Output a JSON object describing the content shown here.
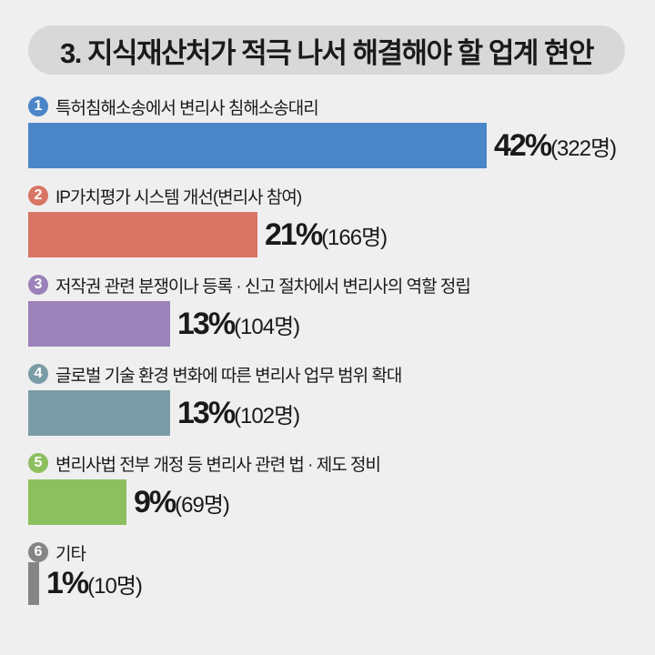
{
  "chart_data": {
    "type": "bar",
    "orientation": "horizontal",
    "title": "3. 지식재산처가 적극 나서 해결해야 할 업계 현안",
    "categories": [
      "특허침해소송에서 변리사 침해소송대리",
      "IP가치평가 시스템 개선(변리사 참여)",
      "저작권 관련 분쟁이나 등록 · 신고 절차에서 변리사의 역할 정립",
      "글로벌 기술 환경 변화에 따른 변리사 업무 범위 확대",
      "변리사법 전부 개정 등 변리사 관련 법 · 제도 정비",
      "기타"
    ],
    "numbers": [
      "1",
      "2",
      "3",
      "4",
      "5",
      "6"
    ],
    "values": [
      42,
      21,
      13,
      13,
      9,
      1
    ],
    "value_labels": [
      "42%",
      "21%",
      "13%",
      "13%",
      "9%",
      "1%"
    ],
    "counts": [
      322,
      166,
      104,
      102,
      69,
      10
    ],
    "count_labels": [
      "(322명)",
      "(166명)",
      "(104명)",
      "(102명)",
      "(69명)",
      " (10명)"
    ],
    "colors": [
      "#4a86c8",
      "#d87565",
      "#9b82b8",
      "#7a9ca6",
      "#8cbf5e",
      "#858585"
    ],
    "unit": "%",
    "grid": false
  }
}
